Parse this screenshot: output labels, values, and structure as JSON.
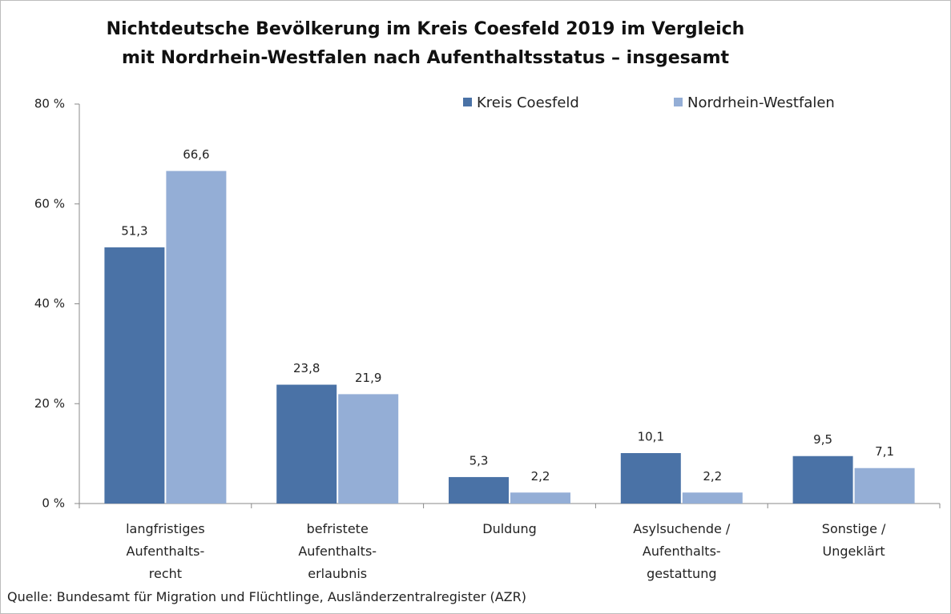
{
  "chart_data": {
    "type": "bar",
    "title": "Nichtdeutsche Bevölkerung im Kreis Coesfeld 2019  im Vergleich\nmit Nordrhein-Westfalen nach Aufenthaltsstatus – insgesamt",
    "categories": [
      "langfristiges\nAufenthalts-\nrecht",
      "befristete\nAufenthalts-\nerlaubnis",
      "Duldung",
      "Asylsuchende /\nAufenthalts-\ngestattung",
      "Sonstige /\nUngeklärt"
    ],
    "series": [
      {
        "name": "Kreis Coesfeld",
        "color": "#4a72a6",
        "values": [
          51.3,
          23.8,
          5.3,
          10.1,
          9.5
        ],
        "value_labels": [
          "51,3",
          "23,8",
          "5,3",
          "10,1",
          "9,5"
        ]
      },
      {
        "name": "Nordrhein-Westfalen",
        "color": "#94aed6",
        "values": [
          66.6,
          21.9,
          2.2,
          2.2,
          7.1
        ],
        "value_labels": [
          "66,6",
          "21,9",
          "2,2",
          "2,2",
          "7,1"
        ]
      }
    ],
    "ylim": [
      0,
      80
    ],
    "yticks": [
      {
        "value": 0,
        "label": "0 %"
      },
      {
        "value": 20,
        "label": "20 %"
      },
      {
        "value": 40,
        "label": "40 %"
      },
      {
        "value": 60,
        "label": "60 %"
      },
      {
        "value": 80,
        "label": "80 %"
      }
    ],
    "legend": "top-right",
    "source": "Quelle: Bundesamt für Migration und Flüchtlinge, Ausländerzentralregister (AZR)"
  }
}
